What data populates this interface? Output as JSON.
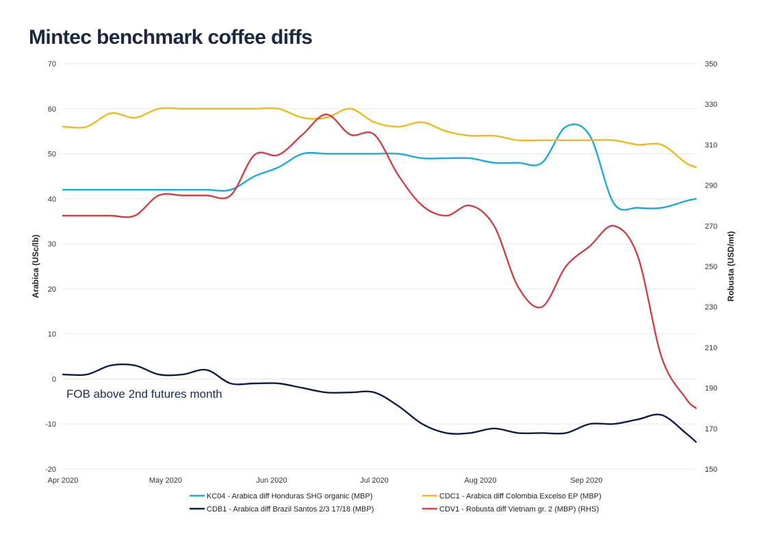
{
  "chart_data": {
    "type": "line",
    "title": "Mintec benchmark coffee diffs",
    "ylabel": "Arabica (USc/lb)",
    "y2label": "Robusta (USD/mt)",
    "ylim": [
      -20,
      70
    ],
    "y2lim": [
      150,
      350
    ],
    "yticks": [
      "70",
      "60",
      "50",
      "40",
      "30",
      "20",
      "10",
      "0",
      "-10",
      "-20"
    ],
    "y2ticks": [
      "350",
      "330",
      "310",
      "290",
      "270",
      "250",
      "230",
      "210",
      "190",
      "170",
      "150"
    ],
    "xlim": [
      0,
      185
    ],
    "xticks": [
      {
        "label": "Apr 2020",
        "day": 0
      },
      {
        "label": "May 2020",
        "day": 30
      },
      {
        "label": "Jun 2020",
        "day": 61
      },
      {
        "label": "Jul 2020",
        "day": 91
      },
      {
        "label": "Aug 2020",
        "day": 122
      },
      {
        "label": "Sep 2020",
        "day": 153
      }
    ],
    "annotation": "FOB above 2nd futures month",
    "grid": true,
    "legend_position": "bottom",
    "series": [
      {
        "name": "KC04 - Arabica diff Honduras SHG organic (MBP)",
        "color": "#1aa9dc",
        "axis": "left",
        "x": [
          0,
          7,
          14,
          21,
          28,
          35,
          42,
          49,
          56,
          63,
          70,
          77,
          84,
          91,
          98,
          105,
          112,
          119,
          126,
          133,
          140,
          147,
          154,
          161,
          168,
          175,
          182,
          185
        ],
        "y": [
          42,
          42,
          42,
          42,
          42,
          42,
          42,
          42,
          45,
          47,
          50,
          50,
          50,
          50,
          50,
          49,
          49,
          49,
          48,
          48,
          48,
          56,
          54,
          39,
          38,
          38,
          39.5,
          40
        ]
      },
      {
        "name": "CDC1 - Arabica diff Colombia Excelso EP (MBP)",
        "color": "#f0b81c",
        "axis": "left",
        "x": [
          0,
          7,
          14,
          21,
          28,
          35,
          42,
          49,
          56,
          63,
          70,
          77,
          84,
          91,
          98,
          105,
          112,
          119,
          126,
          133,
          140,
          147,
          154,
          161,
          168,
          175,
          182,
          185
        ],
        "y": [
          56,
          56,
          59,
          58,
          60,
          60,
          60,
          60,
          60,
          60,
          58,
          58,
          60,
          57,
          56,
          57,
          55,
          54,
          54,
          53,
          53,
          53,
          53,
          53,
          52,
          52,
          48,
          47
        ]
      },
      {
        "name": "CDB1 - Arabica diff Brazil Santos 2/3 17/18 (MBP)",
        "color": "#0e1d4a",
        "axis": "left",
        "x": [
          0,
          7,
          14,
          21,
          28,
          35,
          42,
          49,
          56,
          63,
          70,
          77,
          84,
          91,
          98,
          105,
          112,
          119,
          126,
          133,
          140,
          147,
          154,
          161,
          168,
          175,
          182,
          185
        ],
        "y": [
          1,
          1,
          3,
          3,
          1,
          1,
          2,
          -1,
          -1,
          -1,
          -2,
          -3,
          -3,
          -3,
          -6,
          -10,
          -12,
          -12,
          -11,
          -12,
          -12,
          -12,
          -10,
          -10,
          -9,
          -8,
          -12,
          -14
        ]
      },
      {
        "name": "CDV1 - Robusta diff Vietnam gr. 2 (MBP) (RHS)",
        "color": "#cf3f45",
        "axis": "right",
        "x": [
          0,
          7,
          14,
          21,
          28,
          35,
          42,
          49,
          56,
          63,
          70,
          77,
          84,
          91,
          98,
          105,
          112,
          119,
          126,
          133,
          140,
          147,
          154,
          161,
          168,
          175,
          182,
          185
        ],
        "y": [
          275,
          275,
          275,
          275,
          285,
          285,
          285,
          285,
          305,
          305,
          315,
          325,
          315,
          315,
          295,
          280,
          275,
          280,
          270,
          240,
          230,
          250,
          260,
          270,
          255,
          205,
          185,
          180
        ]
      }
    ]
  }
}
